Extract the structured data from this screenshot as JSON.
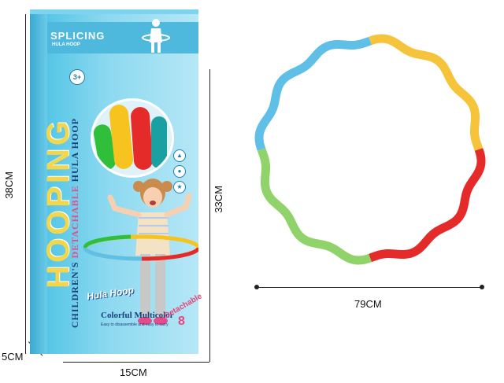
{
  "dimensions": {
    "box_height": "38CM",
    "box_depth": "5CM",
    "box_width": "15CM",
    "front_height": "33CM",
    "hoop_diameter": "79CM"
  },
  "package": {
    "brand_title": "SPLICING",
    "brand_subtitle": "HULA HOOP",
    "age": "3+",
    "big_word": "HOOPING",
    "side_title_1": "CHILDREN'S",
    "side_title_pink": "DETACHABLE",
    "side_title_2": "HULA HOOP",
    "logo": "Hula Hoop",
    "product_name": "Colorful Multicolor",
    "copy_line_1": "Easy to disassemble and easy to carry",
    "detachable_label": "Detachable",
    "detachable_count": "8"
  },
  "hoop": {
    "segment_colors": [
      "#f6c43a",
      "#e52a2a",
      "#8fd36a",
      "#5fbfe6"
    ]
  },
  "colors": {
    "box_blue": "#56c6e6",
    "title_navy": "#1b3e7a",
    "accent_pink": "#e84b8a"
  }
}
